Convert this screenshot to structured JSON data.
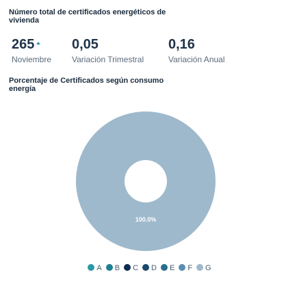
{
  "header": {
    "title": "Número total de certificados energéticos de vivienda"
  },
  "metrics": [
    {
      "value": "265",
      "label": "Noviembre",
      "trend": "up"
    },
    {
      "value": "0,05",
      "label": "Variación Trimestral"
    },
    {
      "value": "0,16",
      "label": "Variación Anual"
    }
  ],
  "colors": {
    "trend_up": "#2a9aa5"
  },
  "chart_data": {
    "type": "pie",
    "variant": "donut",
    "title": "Porcentaje de Certificados según consumo energía",
    "slices": [
      {
        "label": "A",
        "value": 0,
        "color": "#2a9aa5"
      },
      {
        "label": "B",
        "value": 0,
        "color": "#1f7f92"
      },
      {
        "label": "C",
        "value": 0,
        "color": "#0e2e4f"
      },
      {
        "label": "D",
        "value": 0,
        "color": "#1c4a6e"
      },
      {
        "label": "E",
        "value": 0,
        "color": "#2a6e8f"
      },
      {
        "label": "F",
        "value": 0,
        "color": "#5a8fb0"
      },
      {
        "label": "G",
        "value": 100,
        "color": "#9fb9cc"
      }
    ],
    "data_labels": [
      "100.0%"
    ],
    "legend": {
      "position": "bottom"
    }
  }
}
